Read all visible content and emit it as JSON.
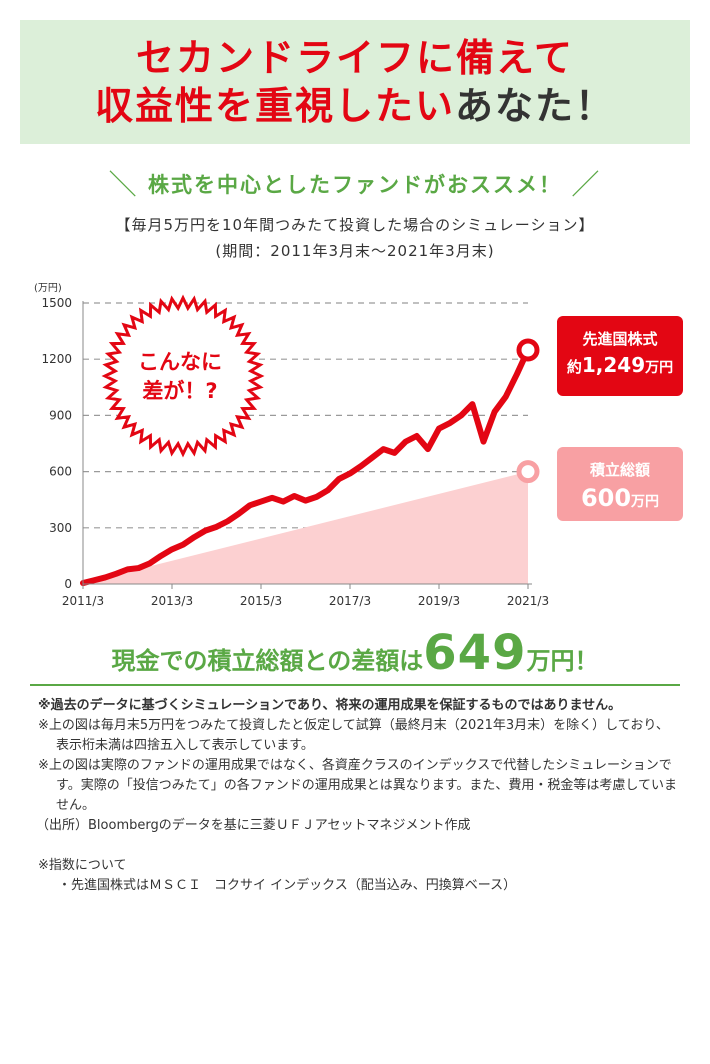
{
  "header": {
    "line1": "セカンドライフに備えて",
    "line2_emphasis": "収益性を重視したい",
    "line2_rest": "あなた！"
  },
  "recommend": {
    "slash_left": "＼",
    "text": "株式を中心としたファンドがおススメ！",
    "slash_right": "／"
  },
  "simulation": {
    "title": "【毎月5万円を10年間つみたて投資した場合のシミュレーション】",
    "period": "(期間：2011年3月末〜2021年3月末)"
  },
  "badge": {
    "line1": "こんなに",
    "line2": "差が！?"
  },
  "callouts": {
    "stock": {
      "label": "先進国株式",
      "prefix": "約",
      "value": "1,249",
      "unit": "万円"
    },
    "savings": {
      "label": "積立総額",
      "value": "600",
      "unit": "万円"
    }
  },
  "chart_data": {
    "type": "line",
    "ylabel": "(万円)",
    "ylim": [
      0,
      1500
    ],
    "yticks": [
      0,
      300,
      600,
      900,
      1200,
      1500
    ],
    "xlim": [
      2011.25,
      2021.25
    ],
    "xticks": [
      {
        "label": "2011/3",
        "x": 2011.25
      },
      {
        "label": "2013/3",
        "x": 2013.25
      },
      {
        "label": "2015/3",
        "x": 2015.25
      },
      {
        "label": "2017/3",
        "x": 2017.25
      },
      {
        "label": "2019/3",
        "x": 2019.25
      },
      {
        "label": "2021/3",
        "x": 2021.25
      }
    ],
    "series": [
      {
        "name": "先進国株式",
        "color": "#e30613",
        "x": [
          2011.25,
          2011.5,
          2011.75,
          2012.0,
          2012.25,
          2012.5,
          2012.75,
          2013.0,
          2013.25,
          2013.5,
          2013.75,
          2014.0,
          2014.25,
          2014.5,
          2014.75,
          2015.0,
          2015.25,
          2015.5,
          2015.75,
          2016.0,
          2016.25,
          2016.5,
          2016.75,
          2017.0,
          2017.25,
          2017.5,
          2017.75,
          2018.0,
          2018.25,
          2018.5,
          2018.75,
          2019.0,
          2019.25,
          2019.5,
          2019.75,
          2020.0,
          2020.25,
          2020.5,
          2020.75,
          2021.0,
          2021.25
        ],
        "values": [
          5,
          20,
          35,
          55,
          78,
          85,
          110,
          150,
          185,
          210,
          250,
          285,
          305,
          335,
          375,
          420,
          440,
          460,
          440,
          470,
          445,
          465,
          500,
          560,
          590,
          630,
          675,
          720,
          700,
          760,
          790,
          720,
          830,
          860,
          900,
          960,
          760,
          920,
          1000,
          1120,
          1249
        ]
      },
      {
        "name": "積立総額",
        "color": "#f8a0a3",
        "x": [
          2011.25,
          2021.25
        ],
        "values": [
          5,
          600
        ]
      }
    ]
  },
  "difference": {
    "prefix": "現金での積立総額との差額は",
    "value": "649",
    "unit": "万円！"
  },
  "notes": {
    "n1": "※過去のデータに基づくシミュレーションであり、将来の運用成果を保証するものではありません。",
    "n2": "※上の図は毎月末5万円をつみたて投資したと仮定して試算（最終月末（2021年3月末）を除く）しており、表示桁未満は四捨五入して表示しています。",
    "n3": "※上の図は実際のファンドの運用成果ではなく、各資産クラスのインデックスで代替したシミュレーションです。実際の「投信つみたて」の各ファンドの運用成果とは異なります。また、費用・税金等は考慮していません。",
    "source": "（出所）Bloombergのデータを基に三菱ＵＦＪアセットマネジメント作成",
    "index_title": "※指数について",
    "index_item": "・先進国株式はＭＳＣＩ　コクサイ インデックス（配当込み、円換算ベース）"
  }
}
